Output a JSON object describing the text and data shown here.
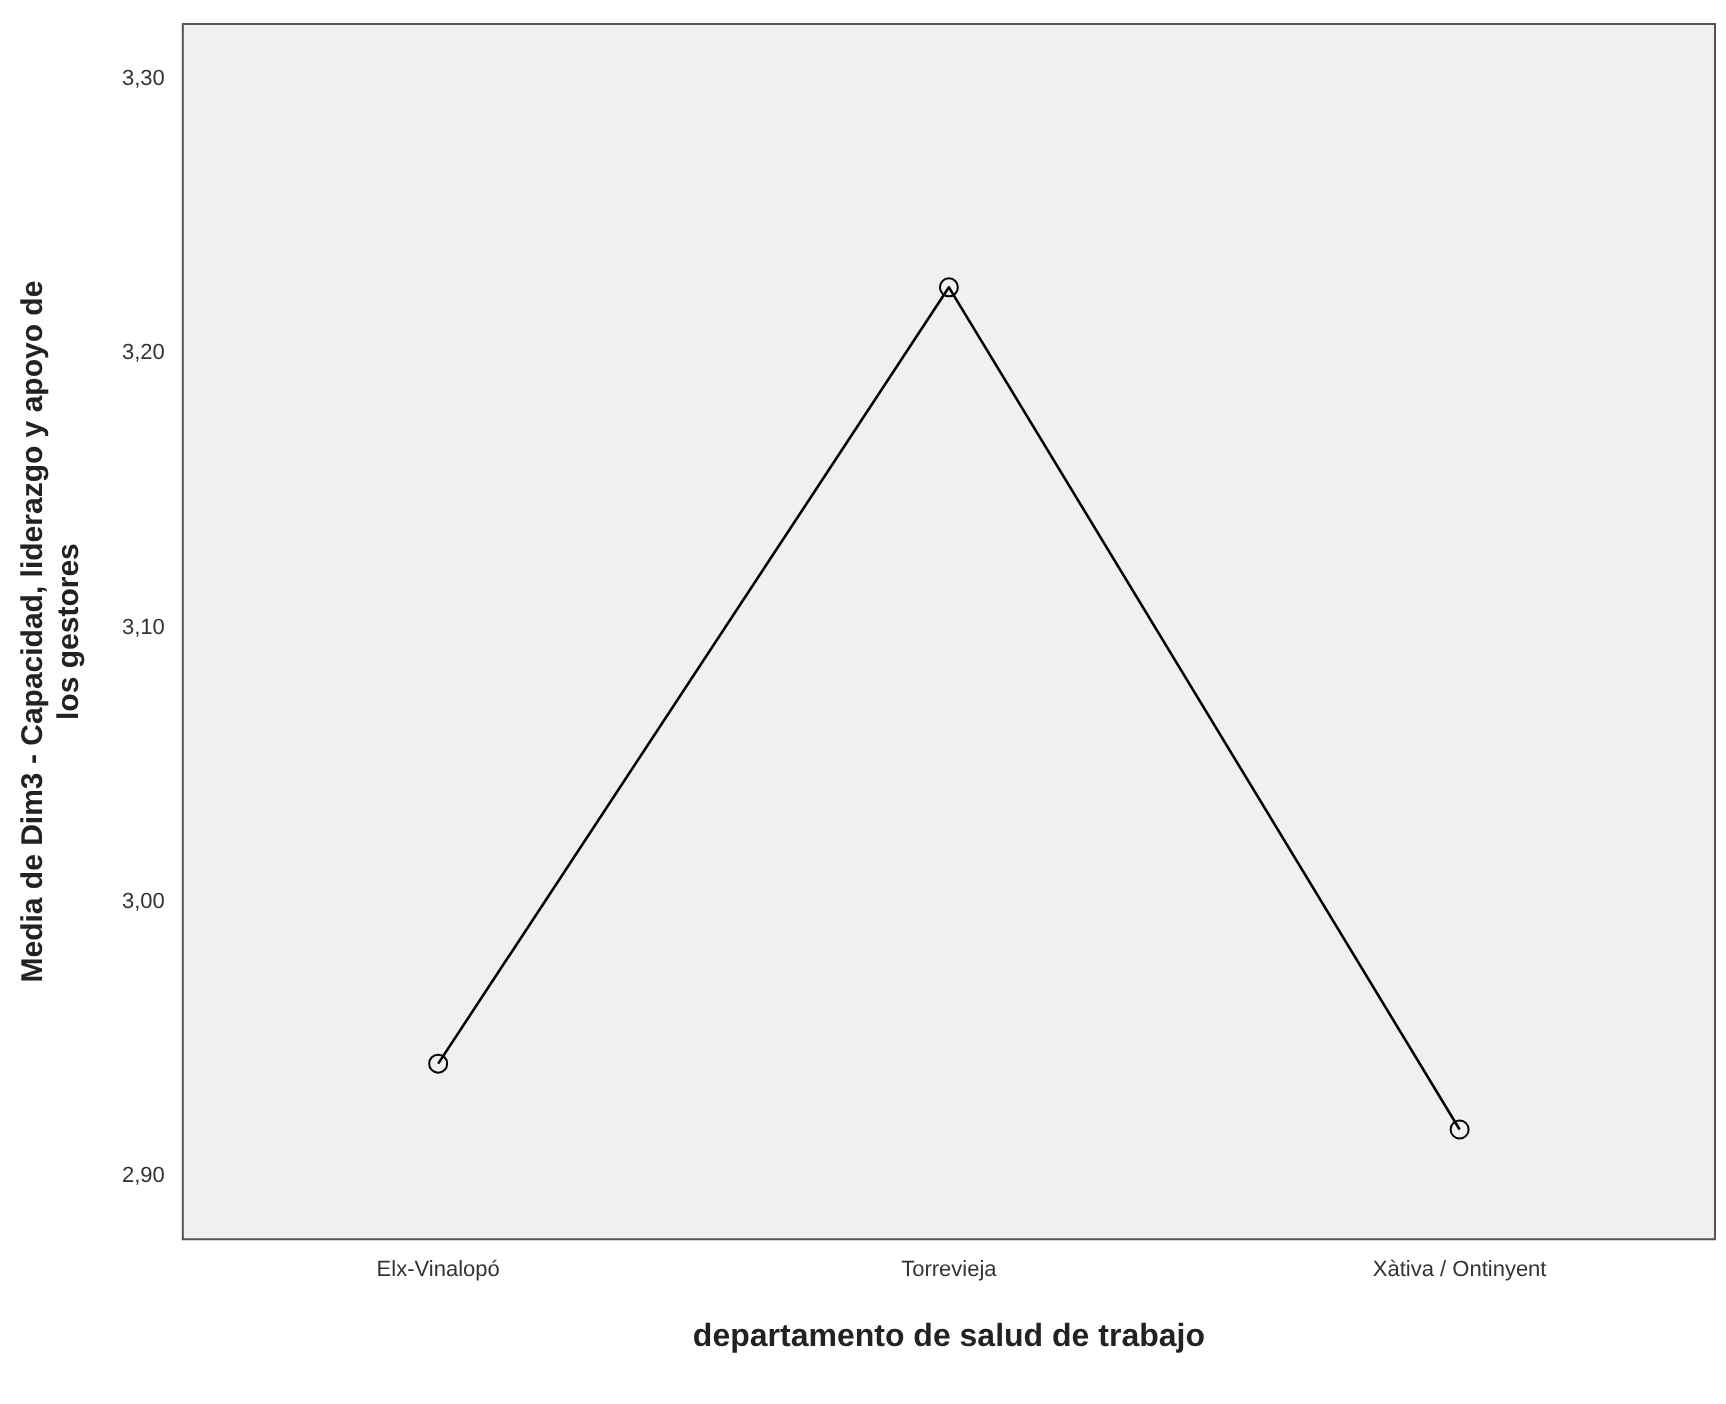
{
  "chart_data": {
    "type": "line",
    "xlabel": "departamento de salud de trabajo",
    "ylabel": "Media de Dim3 - Capacidad, liderazgo y apoyo de los gestores",
    "categories": [
      "Elx-Vinalopó",
      "Torrevieja",
      "Xàtiva / Ontinyent"
    ],
    "series": [
      {
        "color": "#000000",
        "values": [
          2.941,
          3.224,
          2.917
        ]
      }
    ],
    "ylim": [
      2.877,
      3.32
    ],
    "yticks": [
      {
        "value": 2.9,
        "label": "2,90"
      },
      {
        "value": 3.0,
        "label": "3,00"
      },
      {
        "value": 3.1,
        "label": "3,10"
      },
      {
        "value": 3.2,
        "label": "3,20"
      },
      {
        "value": 3.3,
        "label": "3,30"
      }
    ],
    "grid": false,
    "legend": false,
    "marker": "circle",
    "line_style": "solid"
  }
}
